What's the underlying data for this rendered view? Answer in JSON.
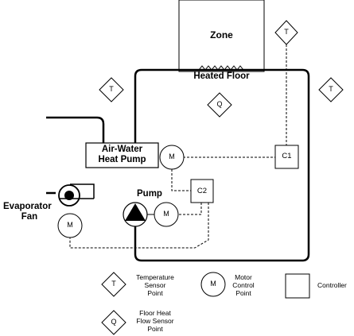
{
  "labels": {
    "zone": "Zone",
    "heated_floor": "Heated Floor",
    "air_water_heat_pump_line1": "Air-Water",
    "air_water_heat_pump_line2": "Heat Pump",
    "evaporator_fan_line1": "Evaporator",
    "evaporator_fan_line2": "Fan",
    "pump": "Pump",
    "controller_c1": "C1",
    "controller_c2": "C2",
    "temp_symbol": "T",
    "flow_symbol": "Q",
    "motor_symbol": "M"
  },
  "legend": {
    "temperature_sensor": [
      "Temperature",
      "Sensor",
      "Point"
    ],
    "motor_control": [
      "Motor",
      "Control",
      "Point"
    ],
    "controller": "Controller",
    "floor_heat_flow_sensor": [
      "Floor Heat",
      "Flow Sensor",
      "Point"
    ],
    "temp_symbol": "T",
    "motor_symbol": "M",
    "flow_symbol": "Q"
  }
}
